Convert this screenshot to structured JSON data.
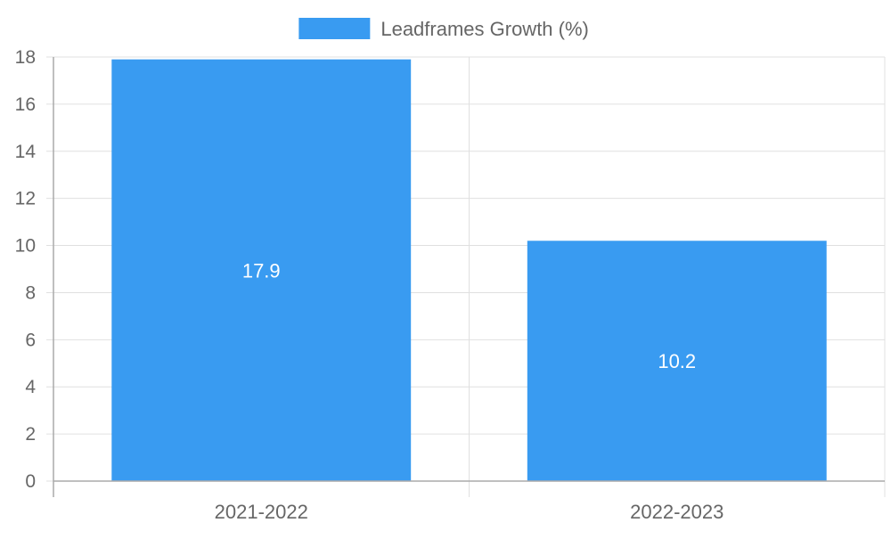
{
  "chart_data": {
    "type": "bar",
    "categories": [
      "2021-2022",
      "2022-2023"
    ],
    "series": [
      {
        "name": "Leadframes Growth (%)",
        "values": [
          17.9,
          10.2
        ],
        "color": "#399BF1"
      }
    ],
    "data_labels": [
      "17.9",
      "10.2"
    ],
    "ylim": [
      0,
      18
    ],
    "yticks": [
      0,
      2,
      4,
      6,
      8,
      10,
      12,
      14,
      16,
      18
    ],
    "grid": true,
    "legend_position": "top-center"
  }
}
